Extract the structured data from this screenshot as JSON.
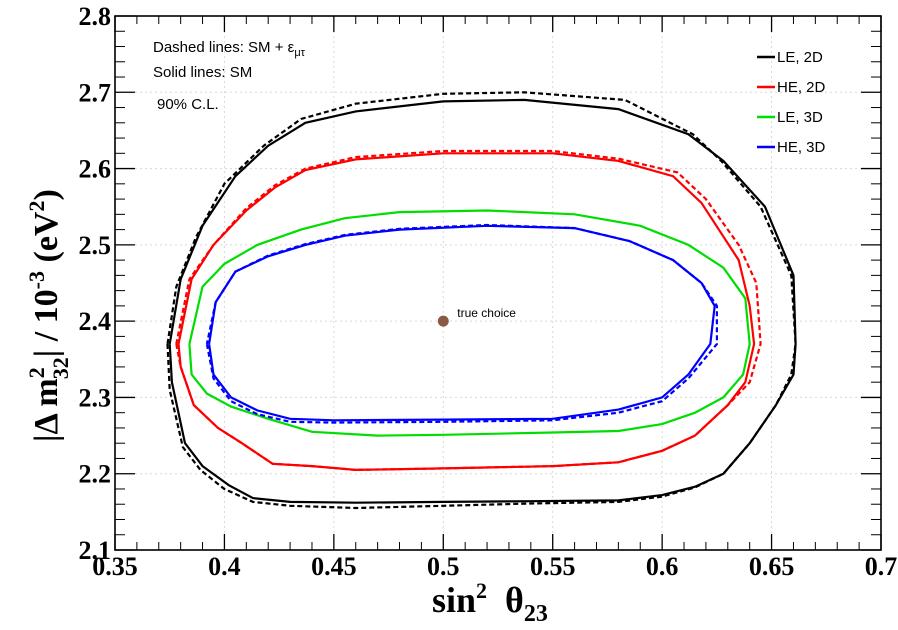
{
  "chart_data": {
    "type": "line",
    "xlabel": {
      "main": "sin",
      "sup": "2",
      "theta": "θ",
      "sub": "23"
    },
    "ylabel": {
      "pre": "|Δ m",
      "sup": "2",
      "sub": "32",
      "mid": "| / 10",
      "exp": "-3",
      "unit": " (eV",
      "unit_sup": "2",
      "close": ")"
    },
    "xlim": [
      0.35,
      0.7
    ],
    "ylim": [
      2.1,
      2.8
    ],
    "x_ticks": [
      "0.35",
      "0.4",
      "0.45",
      "0.5",
      "0.55",
      "0.6",
      "0.65",
      "0.7"
    ],
    "y_ticks": [
      "2.1",
      "2.2",
      "2.3",
      "2.4",
      "2.5",
      "2.6",
      "2.7",
      "2.8"
    ],
    "grid": true,
    "notes": {
      "line1": "Dashed lines: SM + ε",
      "line1_sub": "μτ",
      "line2": "Solid lines: SM",
      "line3": "90% C.L."
    },
    "true_point": {
      "x": 0.5,
      "y": 2.4,
      "label": "true choice",
      "color": "#8b5a46"
    },
    "legend_position": "top-right",
    "series": [
      {
        "name": "LE, 2D",
        "color": "#000000",
        "solid": [
          [
            0.375,
            2.37
          ],
          [
            0.376,
            2.32
          ],
          [
            0.382,
            2.24
          ],
          [
            0.39,
            2.21
          ],
          [
            0.402,
            2.185
          ],
          [
            0.413,
            2.168
          ],
          [
            0.43,
            2.163
          ],
          [
            0.46,
            2.162
          ],
          [
            0.5,
            2.163
          ],
          [
            0.54,
            2.164
          ],
          [
            0.58,
            2.165
          ],
          [
            0.6,
            2.172
          ],
          [
            0.615,
            2.183
          ],
          [
            0.628,
            2.2
          ],
          [
            0.64,
            2.24
          ],
          [
            0.652,
            2.29
          ],
          [
            0.66,
            2.33
          ],
          [
            0.661,
            2.37
          ],
          [
            0.66,
            2.46
          ],
          [
            0.647,
            2.55
          ],
          [
            0.628,
            2.61
          ],
          [
            0.612,
            2.645
          ],
          [
            0.58,
            2.678
          ],
          [
            0.537,
            2.69
          ],
          [
            0.5,
            2.688
          ],
          [
            0.46,
            2.675
          ],
          [
            0.437,
            2.66
          ],
          [
            0.42,
            2.63
          ],
          [
            0.405,
            2.59
          ],
          [
            0.39,
            2.525
          ],
          [
            0.38,
            2.455
          ],
          [
            0.375,
            2.37
          ]
        ],
        "dashed": [
          [
            0.374,
            2.37
          ],
          [
            0.375,
            2.31
          ],
          [
            0.381,
            2.235
          ],
          [
            0.389,
            2.205
          ],
          [
            0.4,
            2.18
          ],
          [
            0.413,
            2.163
          ],
          [
            0.43,
            2.158
          ],
          [
            0.46,
            2.155
          ],
          [
            0.5,
            2.158
          ],
          [
            0.54,
            2.161
          ],
          [
            0.58,
            2.163
          ],
          [
            0.6,
            2.17
          ],
          [
            0.615,
            2.182
          ],
          [
            0.628,
            2.2
          ],
          [
            0.64,
            2.24
          ],
          [
            0.652,
            2.29
          ],
          [
            0.659,
            2.33
          ],
          [
            0.661,
            2.37
          ],
          [
            0.659,
            2.46
          ],
          [
            0.645,
            2.55
          ],
          [
            0.627,
            2.61
          ],
          [
            0.614,
            2.645
          ],
          [
            0.583,
            2.69
          ],
          [
            0.537,
            2.7
          ],
          [
            0.5,
            2.698
          ],
          [
            0.46,
            2.685
          ],
          [
            0.435,
            2.665
          ],
          [
            0.418,
            2.63
          ],
          [
            0.4,
            2.58
          ],
          [
            0.387,
            2.51
          ],
          [
            0.378,
            2.445
          ],
          [
            0.374,
            2.37
          ]
        ]
      },
      {
        "name": "HE, 2D",
        "color": "#ff0000",
        "solid": [
          [
            0.379,
            2.37
          ],
          [
            0.38,
            2.34
          ],
          [
            0.386,
            2.29
          ],
          [
            0.397,
            2.26
          ],
          [
            0.408,
            2.24
          ],
          [
            0.422,
            2.213
          ],
          [
            0.44,
            2.21
          ],
          [
            0.46,
            2.205
          ],
          [
            0.5,
            2.207
          ],
          [
            0.55,
            2.21
          ],
          [
            0.58,
            2.215
          ],
          [
            0.6,
            2.23
          ],
          [
            0.615,
            2.25
          ],
          [
            0.63,
            2.29
          ],
          [
            0.638,
            2.32
          ],
          [
            0.642,
            2.37
          ],
          [
            0.64,
            2.42
          ],
          [
            0.635,
            2.48
          ],
          [
            0.618,
            2.555
          ],
          [
            0.605,
            2.59
          ],
          [
            0.58,
            2.61
          ],
          [
            0.55,
            2.62
          ],
          [
            0.5,
            2.62
          ],
          [
            0.46,
            2.612
          ],
          [
            0.437,
            2.598
          ],
          [
            0.423,
            2.575
          ],
          [
            0.41,
            2.545
          ],
          [
            0.395,
            2.5
          ],
          [
            0.385,
            2.455
          ],
          [
            0.379,
            2.37
          ]
        ],
        "dashed": [
          [
            0.378,
            2.37
          ],
          [
            0.38,
            2.34
          ],
          [
            0.386,
            2.29
          ],
          [
            0.397,
            2.26
          ],
          [
            0.408,
            2.24
          ],
          [
            0.422,
            2.213
          ],
          [
            0.44,
            2.21
          ],
          [
            0.46,
            2.205
          ],
          [
            0.5,
            2.207
          ],
          [
            0.55,
            2.21
          ],
          [
            0.58,
            2.215
          ],
          [
            0.6,
            2.23
          ],
          [
            0.615,
            2.25
          ],
          [
            0.63,
            2.29
          ],
          [
            0.64,
            2.32
          ],
          [
            0.645,
            2.37
          ],
          [
            0.643,
            2.45
          ],
          [
            0.635,
            2.5
          ],
          [
            0.62,
            2.56
          ],
          [
            0.607,
            2.595
          ],
          [
            0.58,
            2.613
          ],
          [
            0.55,
            2.623
          ],
          [
            0.5,
            2.623
          ],
          [
            0.46,
            2.615
          ],
          [
            0.437,
            2.6
          ],
          [
            0.423,
            2.578
          ],
          [
            0.41,
            2.548
          ],
          [
            0.395,
            2.5
          ],
          [
            0.384,
            2.455
          ],
          [
            0.378,
            2.37
          ]
        ]
      },
      {
        "name": "LE, 3D",
        "color": "#00dd00",
        "solid": [
          [
            0.384,
            2.37
          ],
          [
            0.385,
            2.33
          ],
          [
            0.392,
            2.305
          ],
          [
            0.403,
            2.288
          ],
          [
            0.42,
            2.272
          ],
          [
            0.44,
            2.255
          ],
          [
            0.47,
            2.25
          ],
          [
            0.5,
            2.251
          ],
          [
            0.55,
            2.254
          ],
          [
            0.58,
            2.256
          ],
          [
            0.6,
            2.265
          ],
          [
            0.615,
            2.28
          ],
          [
            0.628,
            2.3
          ],
          [
            0.637,
            2.33
          ],
          [
            0.64,
            2.37
          ],
          [
            0.638,
            2.43
          ],
          [
            0.628,
            2.47
          ],
          [
            0.612,
            2.5
          ],
          [
            0.59,
            2.525
          ],
          [
            0.56,
            2.54
          ],
          [
            0.52,
            2.545
          ],
          [
            0.48,
            2.543
          ],
          [
            0.455,
            2.535
          ],
          [
            0.435,
            2.52
          ],
          [
            0.415,
            2.5
          ],
          [
            0.4,
            2.475
          ],
          [
            0.39,
            2.445
          ],
          [
            0.384,
            2.37
          ]
        ],
        "dashed": []
      },
      {
        "name": "HE, 3D",
        "color": "#0000ff",
        "solid": [
          [
            0.393,
            2.37
          ],
          [
            0.395,
            2.33
          ],
          [
            0.403,
            2.3
          ],
          [
            0.415,
            2.283
          ],
          [
            0.43,
            2.272
          ],
          [
            0.45,
            2.27
          ],
          [
            0.5,
            2.271
          ],
          [
            0.55,
            2.272
          ],
          [
            0.58,
            2.284
          ],
          [
            0.6,
            2.3
          ],
          [
            0.612,
            2.33
          ],
          [
            0.622,
            2.37
          ],
          [
            0.624,
            2.42
          ],
          [
            0.618,
            2.45
          ],
          [
            0.605,
            2.48
          ],
          [
            0.585,
            2.505
          ],
          [
            0.56,
            2.522
          ],
          [
            0.52,
            2.525
          ],
          [
            0.48,
            2.52
          ],
          [
            0.455,
            2.512
          ],
          [
            0.437,
            2.5
          ],
          [
            0.42,
            2.485
          ],
          [
            0.405,
            2.465
          ],
          [
            0.396,
            2.425
          ],
          [
            0.393,
            2.37
          ]
        ],
        "dashed": [
          [
            0.392,
            2.37
          ],
          [
            0.395,
            2.325
          ],
          [
            0.403,
            2.295
          ],
          [
            0.415,
            2.278
          ],
          [
            0.43,
            2.268
          ],
          [
            0.45,
            2.267
          ],
          [
            0.5,
            2.268
          ],
          [
            0.55,
            2.27
          ],
          [
            0.58,
            2.28
          ],
          [
            0.6,
            2.295
          ],
          [
            0.612,
            2.325
          ],
          [
            0.625,
            2.37
          ],
          [
            0.625,
            2.42
          ],
          [
            0.618,
            2.45
          ],
          [
            0.605,
            2.48
          ],
          [
            0.585,
            2.505
          ],
          [
            0.56,
            2.522
          ],
          [
            0.52,
            2.526
          ],
          [
            0.48,
            2.521
          ],
          [
            0.455,
            2.513
          ],
          [
            0.437,
            2.501
          ],
          [
            0.42,
            2.486
          ],
          [
            0.405,
            2.465
          ],
          [
            0.396,
            2.425
          ],
          [
            0.392,
            2.37
          ]
        ]
      }
    ]
  }
}
